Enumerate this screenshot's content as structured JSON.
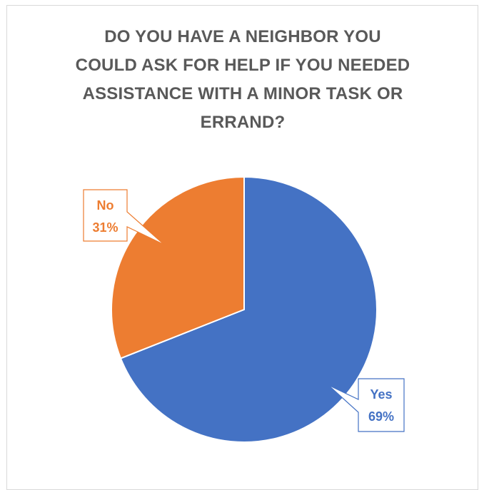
{
  "chart_data": {
    "type": "pie",
    "title": "DO YOU HAVE A NEIGHBOR YOU\nCOULD ASK FOR HELP IF YOU NEEDED\nASSISTANCE WITH A MINOR TASK OR\nERRAND?",
    "slices": [
      {
        "category": "Yes",
        "value": 69,
        "label": "69%",
        "color": "#4472C4"
      },
      {
        "category": "No",
        "value": 31,
        "label": "31%",
        "color": "#ED7D31"
      }
    ],
    "start_angle_deg": 0,
    "direction": "clockwise",
    "data_labels": "callout"
  }
}
